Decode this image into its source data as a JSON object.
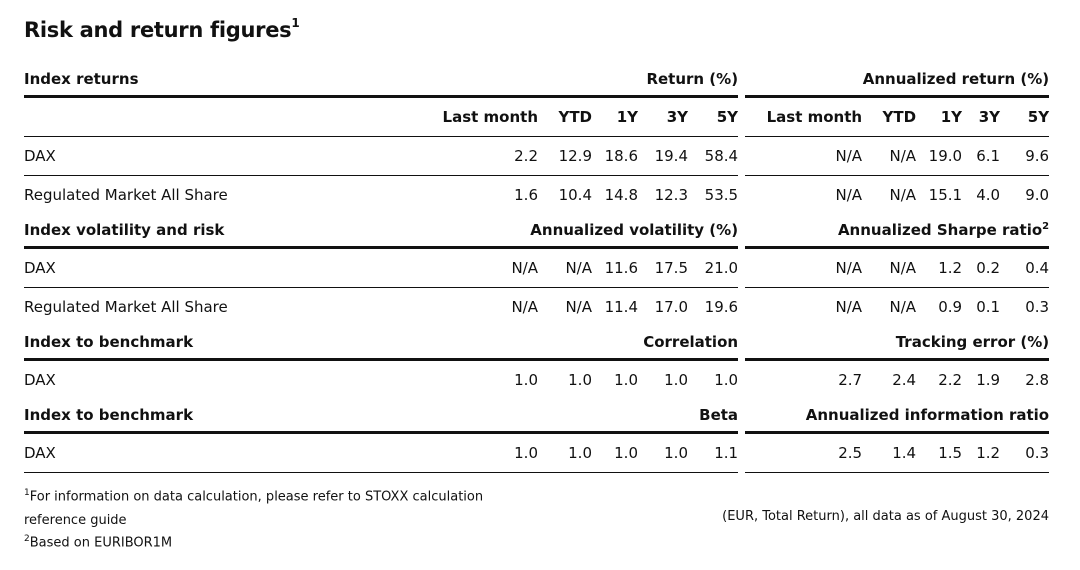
{
  "title": {
    "text": "Risk and return figures",
    "sup": "1"
  },
  "columns": {
    "left": [
      "Last month",
      "YTD",
      "1Y",
      "3Y",
      "5Y"
    ],
    "right": [
      "Last month",
      "YTD",
      "1Y",
      "3Y",
      "5Y"
    ]
  },
  "sections": [
    {
      "label": "Index returns",
      "left_header": "Return (%)",
      "right_header": "Annualized return (%)",
      "right_sup": "",
      "rows": [
        {
          "name": "DAX",
          "left": [
            "2.2",
            "12.9",
            "18.6",
            "19.4",
            "58.4"
          ],
          "right": [
            "N/A",
            "N/A",
            "19.0",
            "6.1",
            "9.6"
          ]
        },
        {
          "name": "Regulated Market All Share",
          "left": [
            "1.6",
            "10.4",
            "14.8",
            "12.3",
            "53.5"
          ],
          "right": [
            "N/A",
            "N/A",
            "15.1",
            "4.0",
            "9.0"
          ]
        }
      ]
    },
    {
      "label": "Index volatility and risk",
      "left_header": "Annualized volatility (%)",
      "right_header": "Annualized Sharpe ratio",
      "right_sup": "2",
      "rows": [
        {
          "name": "DAX",
          "left": [
            "N/A",
            "N/A",
            "11.6",
            "17.5",
            "21.0"
          ],
          "right": [
            "N/A",
            "N/A",
            "1.2",
            "0.2",
            "0.4"
          ]
        },
        {
          "name": "Regulated Market All Share",
          "left": [
            "N/A",
            "N/A",
            "11.4",
            "17.0",
            "19.6"
          ],
          "right": [
            "N/A",
            "N/A",
            "0.9",
            "0.1",
            "0.3"
          ]
        }
      ]
    },
    {
      "label": "Index to benchmark",
      "left_header": "Correlation",
      "right_header": "Tracking error (%)",
      "right_sup": "",
      "rows": [
        {
          "name": "DAX",
          "left": [
            "1.0",
            "1.0",
            "1.0",
            "1.0",
            "1.0"
          ],
          "right": [
            "2.7",
            "2.4",
            "2.2",
            "1.9",
            "2.8"
          ]
        }
      ]
    },
    {
      "label": "Index to benchmark",
      "left_header": "Beta",
      "right_header": "Annualized information ratio",
      "right_sup": "",
      "rows": [
        {
          "name": "DAX",
          "left": [
            "1.0",
            "1.0",
            "1.0",
            "1.0",
            "1.1"
          ],
          "right": [
            "2.5",
            "1.4",
            "1.5",
            "1.2",
            "0.3"
          ]
        }
      ]
    }
  ],
  "footnotes": {
    "note1_sup": "1",
    "note1": "For information on data calculation, please refer to STOXX calculation reference guide",
    "note2_sup": "2",
    "note2": "Based on EURIBOR1M",
    "as_of": "(EUR, Total Return), all data as of August 30, 2024"
  }
}
